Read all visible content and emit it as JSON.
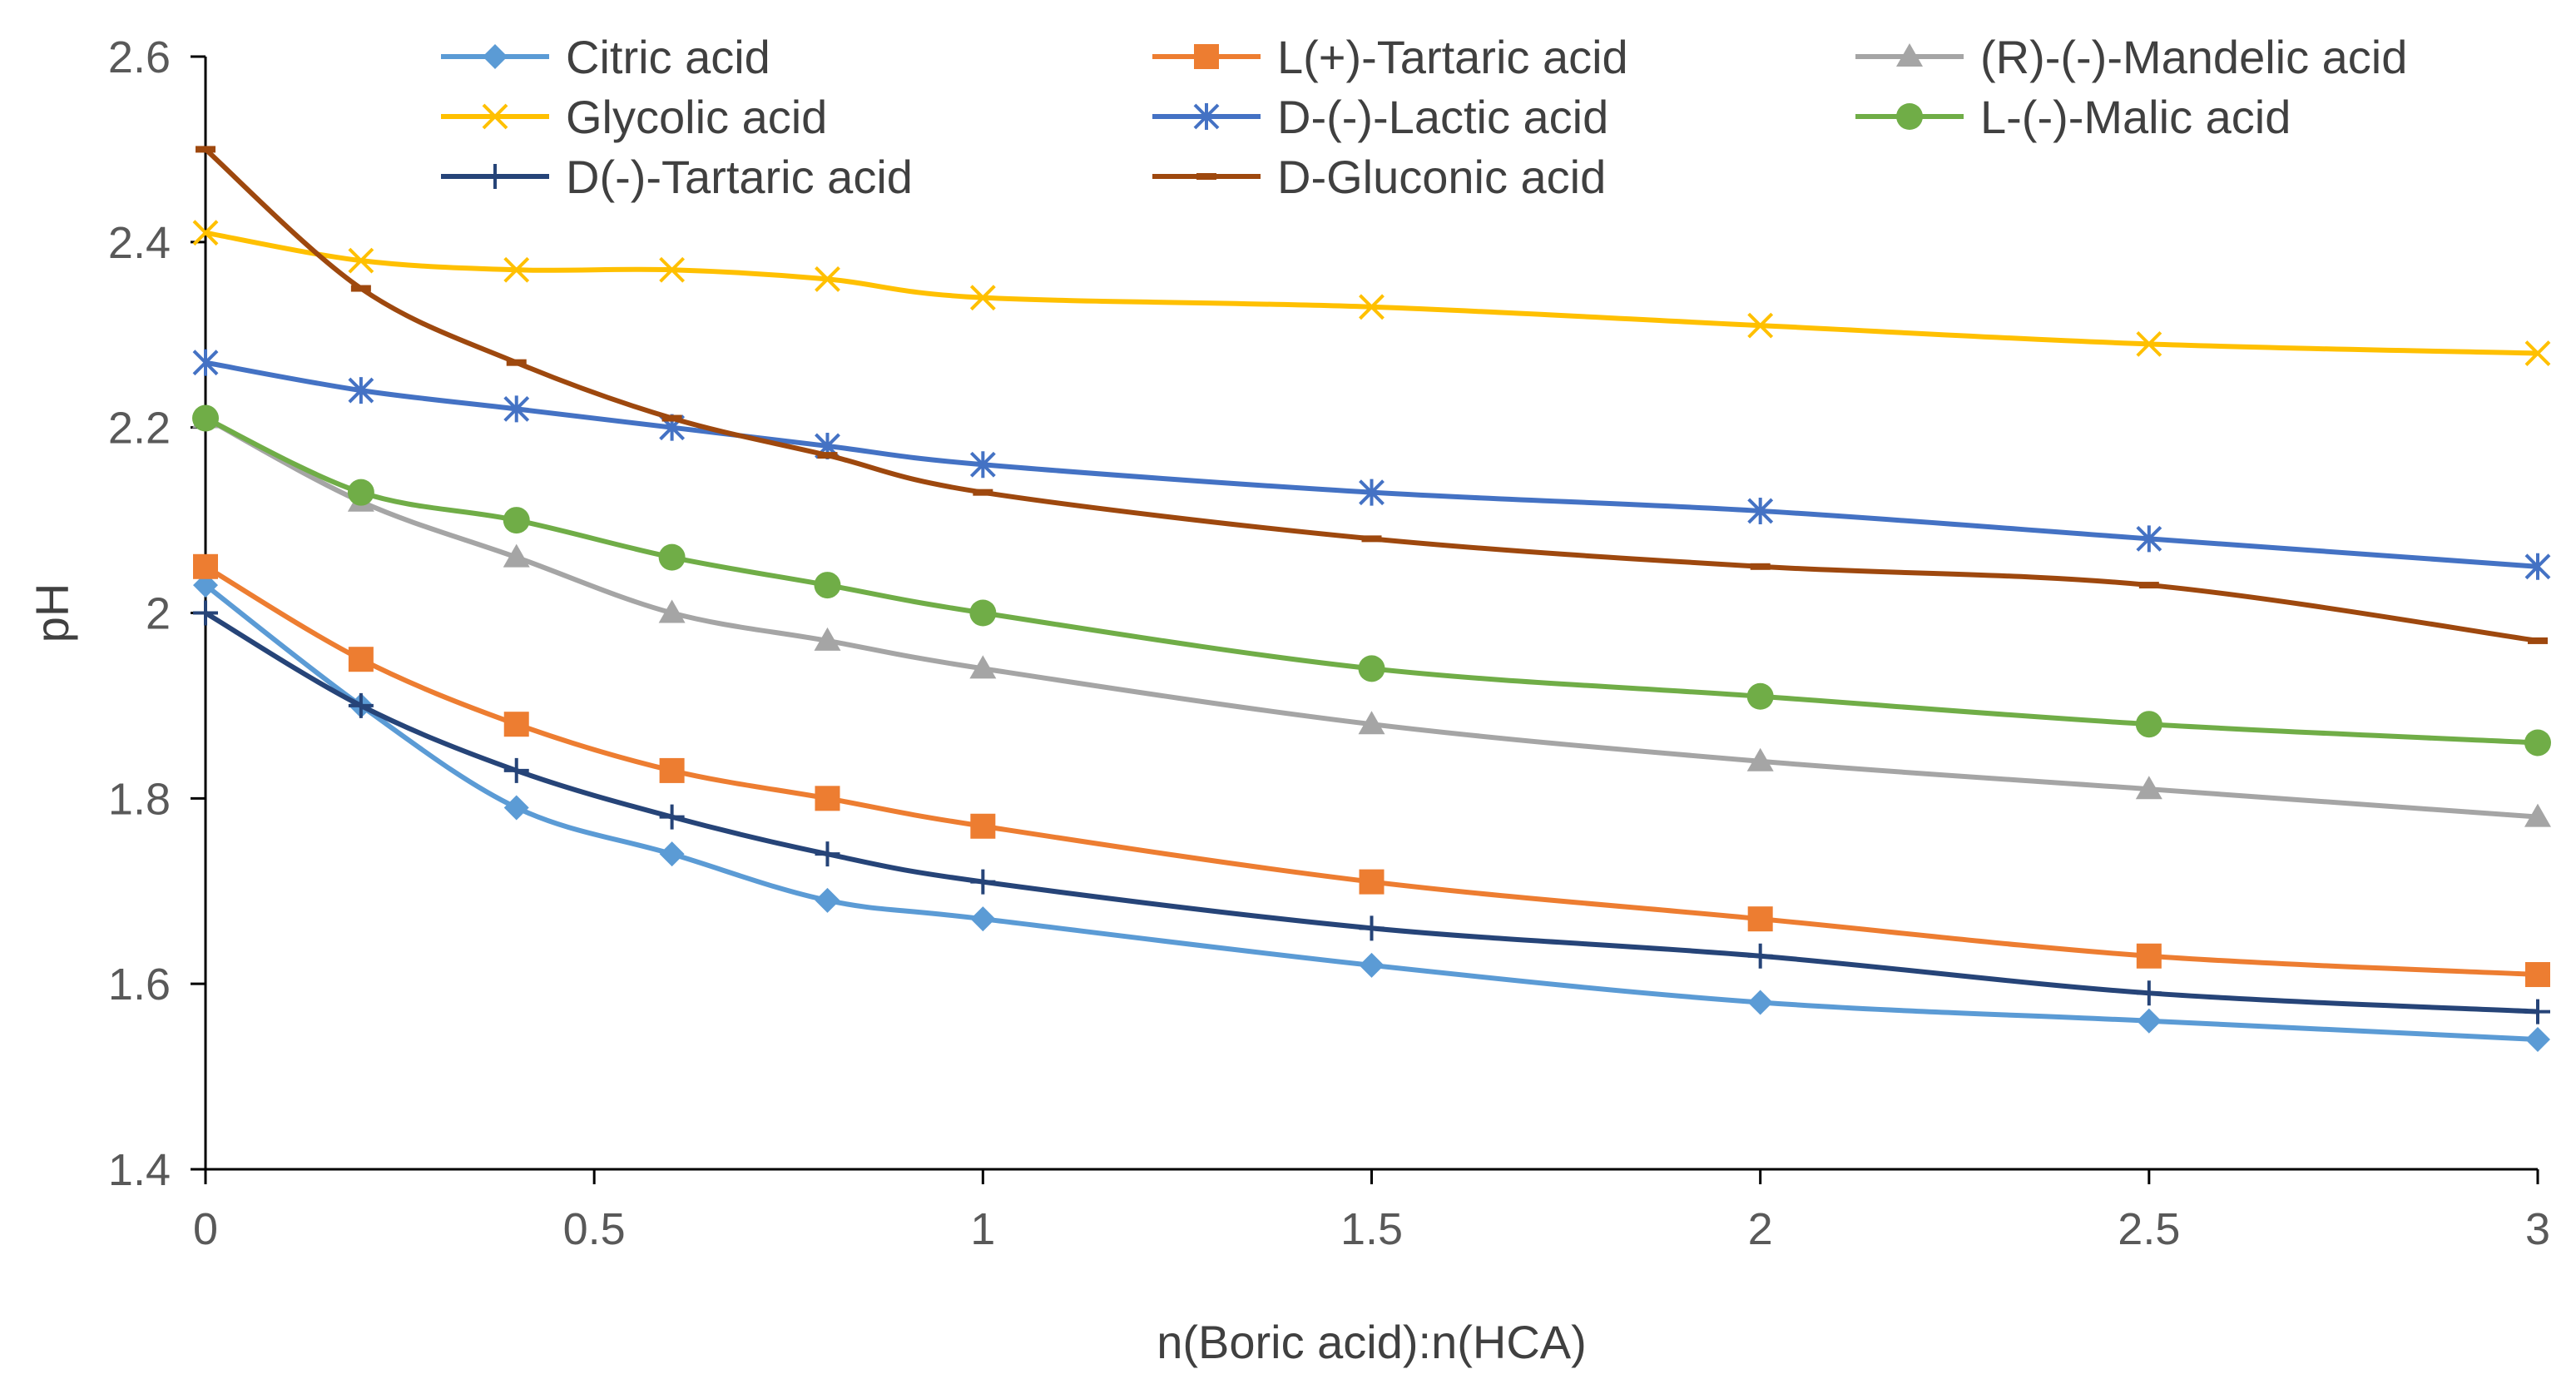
{
  "chart_data": {
    "type": "line",
    "title": "",
    "xlabel": "n(Boric acid):n(HCA)",
    "ylabel": "pH",
    "x": [
      0,
      0.2,
      0.4,
      0.6,
      0.8,
      1,
      1.5,
      2,
      2.5,
      3
    ],
    "xlim": [
      0,
      3
    ],
    "ylim": [
      1.4,
      2.6
    ],
    "x_ticks": [
      0,
      0.5,
      1,
      1.5,
      2,
      2.5,
      3
    ],
    "x_tick_labels": [
      "0",
      "0.5",
      "1",
      "1.5",
      "2",
      "2.5",
      "3"
    ],
    "y_ticks": [
      1.4,
      1.6,
      1.8,
      2,
      2.2,
      2.4,
      2.6
    ],
    "y_tick_labels": [
      "1.4",
      "1.6",
      "1.8",
      "2",
      "2.2",
      "2.4",
      "2.6"
    ],
    "grid": false,
    "legend_position": "top",
    "series": [
      {
        "name": "Citric acid",
        "color": "#5B9BD5",
        "marker": "diamond",
        "values": [
          2.03,
          1.9,
          1.79,
          1.74,
          1.69,
          1.67,
          1.62,
          1.58,
          1.56,
          1.54
        ]
      },
      {
        "name": "L(+)-Tartaric acid",
        "color": "#ED7D31",
        "marker": "square",
        "values": [
          2.05,
          1.95,
          1.88,
          1.83,
          1.8,
          1.77,
          1.71,
          1.67,
          1.63,
          1.61
        ]
      },
      {
        "name": "(R)-(-)-Mandelic acid",
        "color": "#A5A5A5",
        "marker": "triangle",
        "values": [
          2.21,
          2.12,
          2.06,
          2.0,
          1.97,
          1.94,
          1.88,
          1.84,
          1.81,
          1.78
        ]
      },
      {
        "name": "Glycolic acid",
        "color": "#FFC000",
        "marker": "x",
        "values": [
          2.41,
          2.38,
          2.37,
          2.37,
          2.36,
          2.34,
          2.33,
          2.31,
          2.29,
          2.28
        ]
      },
      {
        "name": "D-(-)-Lactic acid",
        "color": "#4472C4",
        "marker": "star",
        "values": [
          2.27,
          2.24,
          2.22,
          2.2,
          2.18,
          2.16,
          2.13,
          2.11,
          2.08,
          2.05
        ]
      },
      {
        "name": "L-(-)-Malic acid",
        "color": "#70AD47",
        "marker": "circle",
        "values": [
          2.21,
          2.13,
          2.1,
          2.06,
          2.03,
          2.0,
          1.94,
          1.91,
          1.88,
          1.86
        ]
      },
      {
        "name": "D(-)-Tartaric acid",
        "color": "#264478",
        "marker": "plus",
        "values": [
          2.0,
          1.9,
          1.83,
          1.78,
          1.74,
          1.71,
          1.66,
          1.63,
          1.59,
          1.57
        ]
      },
      {
        "name": "D-Gluconic acid",
        "color": "#9E480E",
        "marker": "dash",
        "values": [
          2.5,
          2.35,
          2.27,
          2.21,
          2.17,
          2.13,
          2.08,
          2.05,
          2.03,
          1.97
        ]
      }
    ]
  }
}
